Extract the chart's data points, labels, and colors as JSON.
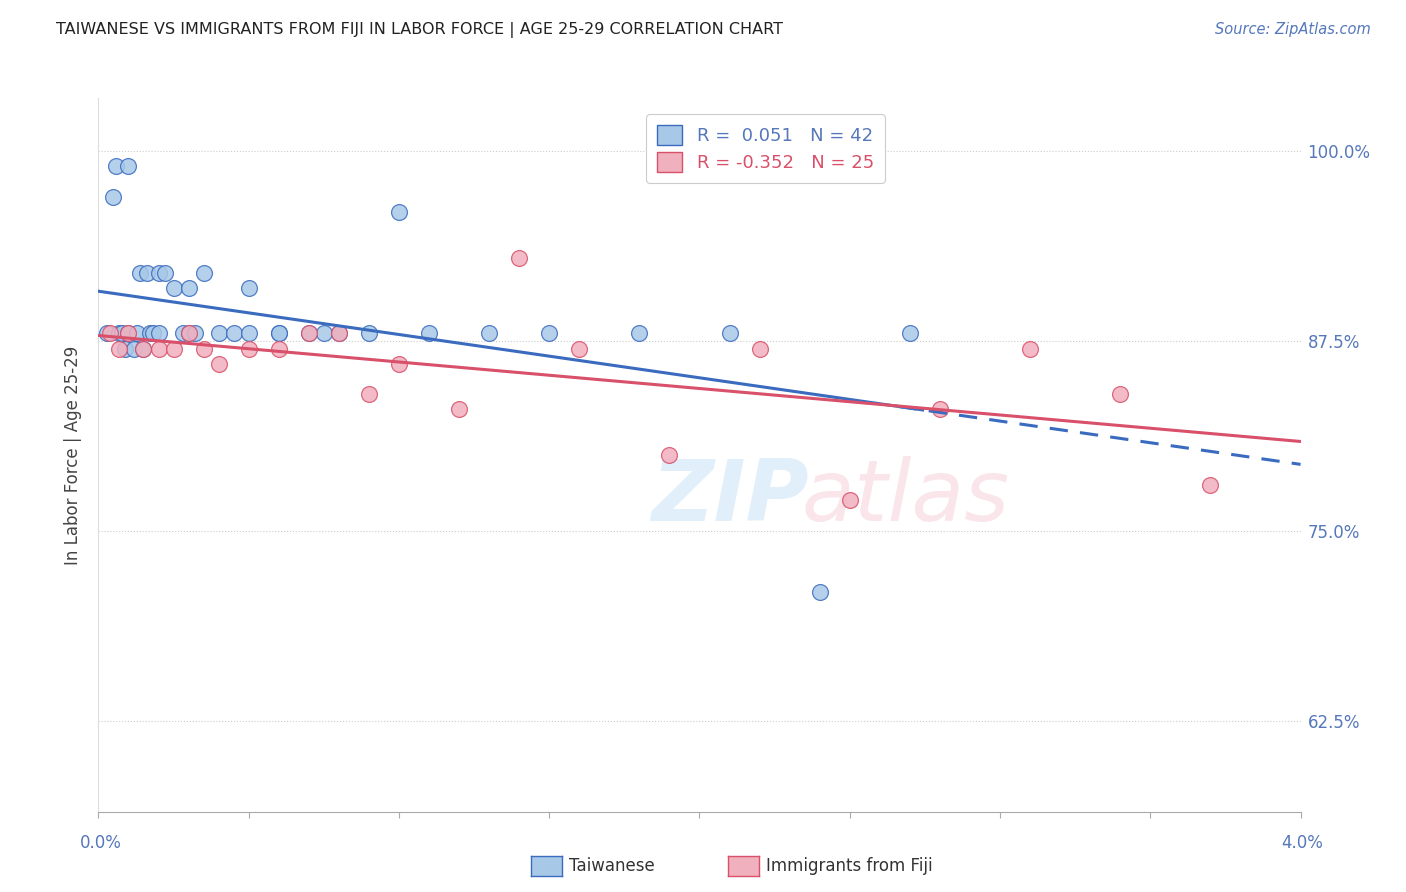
{
  "title": "TAIWANESE VS IMMIGRANTS FROM FIJI IN LABOR FORCE | AGE 25-29 CORRELATION CHART",
  "source": "Source: ZipAtlas.com",
  "ylabel": "In Labor Force | Age 25-29",
  "yticks": [
    0.625,
    0.75,
    0.875,
    1.0
  ],
  "ytick_labels": [
    "62.5%",
    "75.0%",
    "87.5%",
    "100.0%"
  ],
  "xlim": [
    0.0,
    0.04
  ],
  "ylim": [
    0.565,
    1.035
  ],
  "taiwanese_line_color": "#3a6bbf",
  "fiji_line_color": "#d9506a",
  "tw_marker_face": "#a8c8e8",
  "fj_marker_face": "#f0b0be",
  "background_color": "#ffffff",
  "grid_color": "#cccccc",
  "title_color": "#222222",
  "axis_label_color": "#5577bb",
  "marker_size": 130,
  "R_tw": 0.051,
  "N_tw": 42,
  "R_fj": -0.352,
  "N_fj": 25,
  "taiwanese_x": [
    0.0003,
    0.0005,
    0.0006,
    0.0007,
    0.0008,
    0.0009,
    0.001,
    0.001,
    0.0012,
    0.0013,
    0.0014,
    0.0015,
    0.0016,
    0.0017,
    0.0018,
    0.002,
    0.002,
    0.0022,
    0.0025,
    0.0028,
    0.003,
    0.003,
    0.0032,
    0.0035,
    0.004,
    0.0045,
    0.005,
    0.005,
    0.006,
    0.006,
    0.007,
    0.0075,
    0.008,
    0.009,
    0.01,
    0.011,
    0.013,
    0.015,
    0.018,
    0.021,
    0.024,
    0.027
  ],
  "taiwanese_y": [
    0.88,
    0.97,
    0.99,
    0.88,
    0.88,
    0.87,
    0.99,
    0.88,
    0.87,
    0.88,
    0.92,
    0.87,
    0.92,
    0.88,
    0.88,
    0.92,
    0.88,
    0.92,
    0.91,
    0.88,
    0.91,
    0.88,
    0.88,
    0.92,
    0.88,
    0.88,
    0.88,
    0.91,
    0.88,
    0.88,
    0.88,
    0.88,
    0.88,
    0.88,
    0.96,
    0.88,
    0.88,
    0.88,
    0.88,
    0.88,
    0.71,
    0.88
  ],
  "fiji_x": [
    0.0004,
    0.0007,
    0.001,
    0.0015,
    0.002,
    0.0025,
    0.003,
    0.0035,
    0.004,
    0.005,
    0.006,
    0.007,
    0.008,
    0.009,
    0.01,
    0.012,
    0.014,
    0.016,
    0.019,
    0.022,
    0.025,
    0.028,
    0.031,
    0.034,
    0.037
  ],
  "fiji_y": [
    0.88,
    0.87,
    0.88,
    0.87,
    0.87,
    0.87,
    0.88,
    0.87,
    0.86,
    0.87,
    0.87,
    0.88,
    0.88,
    0.84,
    0.86,
    0.83,
    0.93,
    0.87,
    0.8,
    0.87,
    0.77,
    0.83,
    0.87,
    0.84,
    0.78
  ]
}
